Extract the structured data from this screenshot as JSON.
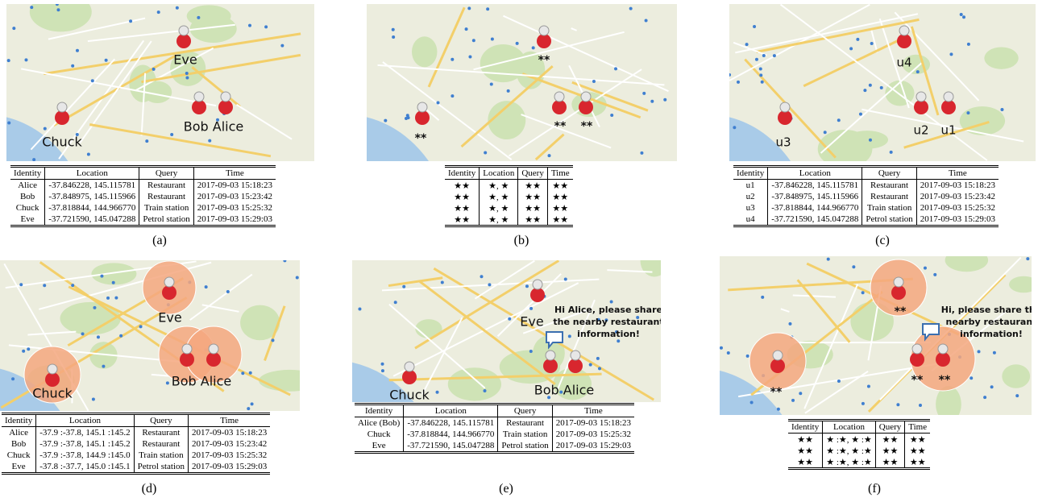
{
  "panels": [
    {
      "caption": "(a)",
      "map_labels": [
        "Eve",
        "Bob Alice",
        "Chuck"
      ],
      "table": {
        "header": [
          "Identity",
          "Location",
          "Query",
          "Time"
        ],
        "rows": [
          [
            "Alice",
            "-37.846228, 145.115781",
            "Restaurant",
            "2017-09-03 15:18:23"
          ],
          [
            "Bob",
            "-37.848975, 145.115966",
            "Restaurant",
            "2017-09-03 15:23:42"
          ],
          [
            "Chuck",
            "-37.818844, 144.966770",
            "Train station",
            "2017-09-03 15:25:32"
          ],
          [
            "Eve",
            "-37.721590, 145.047288",
            "Petrol station",
            "2017-09-03 15:29:03"
          ]
        ]
      }
    },
    {
      "caption": "(b)",
      "map_labels": [
        "**",
        "**",
        "**",
        "**"
      ],
      "table": {
        "header": [
          "Identity",
          "Location",
          "Query",
          "Time"
        ],
        "rows": [
          [
            "★★",
            "★, ★",
            "★★",
            "★★"
          ],
          [
            "★★",
            "★, ★",
            "★★",
            "★★"
          ],
          [
            "★★",
            "★, ★",
            "★★",
            "★★"
          ],
          [
            "★★",
            "★, ★",
            "★★",
            "★★"
          ]
        ]
      }
    },
    {
      "caption": "(c)",
      "map_labels": [
        "u4",
        "u2",
        "u1",
        "u3"
      ],
      "table": {
        "header": [
          "Identity",
          "Location",
          "Query",
          "Time"
        ],
        "rows": [
          [
            "u1",
            "-37.846228, 145.115781",
            "Restaurant",
            "2017-09-03 15:18:23"
          ],
          [
            "u2",
            "-37.848975, 145.115966",
            "Restaurant",
            "2017-09-03 15:23:42"
          ],
          [
            "u3",
            "-37.818844, 144.966770",
            "Train station",
            "2017-09-03 15:25:32"
          ],
          [
            "u4",
            "-37.721590, 145.047288",
            "Petrol station",
            "2017-09-03 15:29:03"
          ]
        ]
      }
    },
    {
      "caption": "(d)",
      "map_labels": [
        "Eve",
        "Bob Alice",
        "Chuck"
      ],
      "table": {
        "header": [
          "Identity",
          "Location",
          "Query",
          "Time"
        ],
        "rows": [
          [
            "Alice",
            "-37.9 :-37.8, 145.1 :145.2",
            "Restaurant",
            "2017-09-03 15:18:23"
          ],
          [
            "Bob",
            "-37.9 :-37.8, 145.1 :145.2",
            "Restaurant",
            "2017-09-03 15:23:42"
          ],
          [
            "Chuck",
            "-37.9 :-37.8, 144.9 :145.0",
            "Train station",
            "2017-09-03 15:25:32"
          ],
          [
            "Eve",
            "-37.8 :-37.7, 145.0 :145.1",
            "Petrol station",
            "2017-09-03 15:29:03"
          ]
        ]
      }
    },
    {
      "caption": "(e)",
      "map_labels": [
        "Eve",
        "Bob Alice",
        "Chuck"
      ],
      "bubble": [
        "Hi Alice, please share",
        "the nearby restaurant",
        "information!"
      ],
      "table": {
        "header": [
          "Identity",
          "Location",
          "Query",
          "Time"
        ],
        "rows": [
          [
            "Alice (Bob)",
            "-37.846228, 145.115781",
            "Restaurant",
            "2017-09-03 15:18:23"
          ],
          [
            "Chuck",
            "-37.818844, 144.966770",
            "Train station",
            "2017-09-03 15:25:32"
          ],
          [
            "Eve",
            "-37.721590, 145.047288",
            "Petrol station",
            "2017-09-03 15:29:03"
          ]
        ]
      }
    },
    {
      "caption": "(f)",
      "map_labels": [
        "**",
        "**",
        "**",
        "**"
      ],
      "bubble": [
        "Hi, please share the",
        "nearby restaurant",
        "information!"
      ],
      "table": {
        "header": [
          "Identity",
          "Location",
          "Query",
          "Time"
        ],
        "rows": [
          [
            "★★",
            "★ :★, ★ :★",
            "★★",
            "★★"
          ],
          [
            "★★",
            "★ :★, ★ :★",
            "★★",
            "★★"
          ],
          [
            "★★",
            "★ :★, ★ :★",
            "★★",
            "★★"
          ]
        ]
      }
    }
  ]
}
